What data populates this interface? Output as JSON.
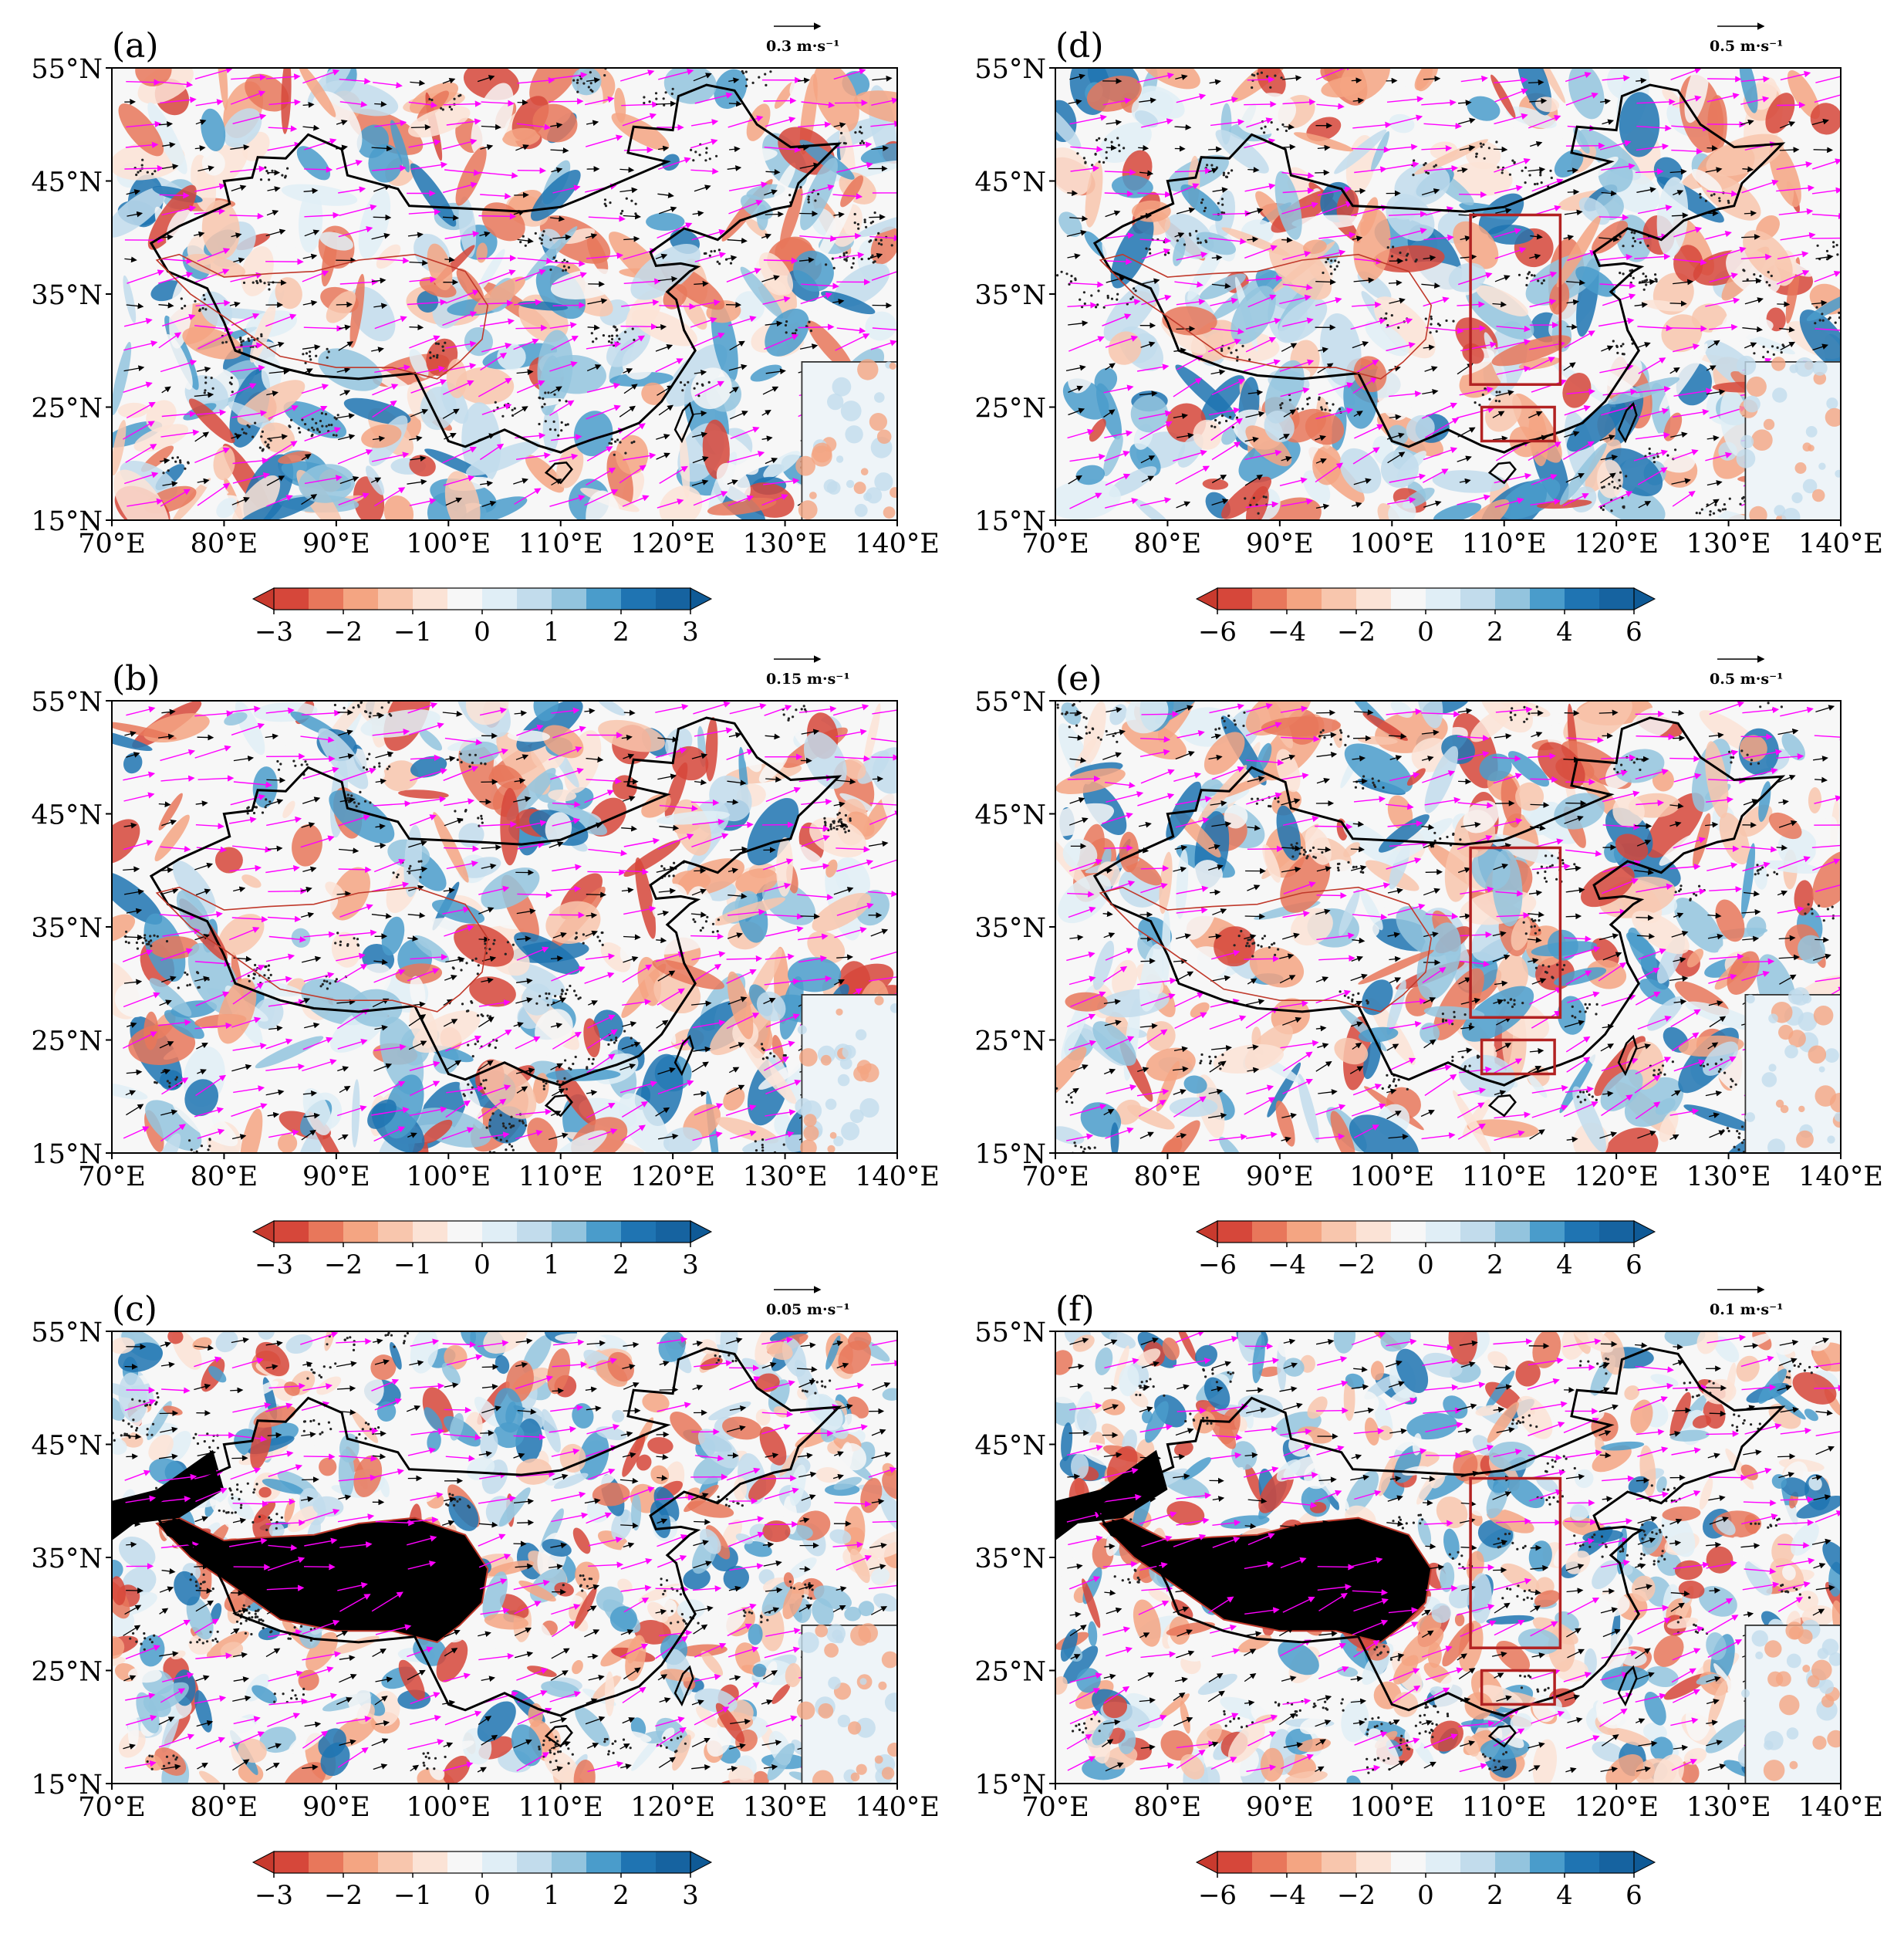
{
  "figure": {
    "x_ticks": [
      "70°E",
      "80°E",
      "90°E",
      "100°E",
      "110°E",
      "120°E",
      "130°E",
      "140°E"
    ],
    "y_ticks": [
      "55°N",
      "45°N",
      "35°N",
      "25°N",
      "15°N"
    ],
    "extent": {
      "lon": [
        70,
        140
      ],
      "lat": [
        15,
        55
      ]
    },
    "vector_colors": {
      "primary": "#000000",
      "secondary": "#ff00ff"
    },
    "anomaly_colors": {
      "negative": "#d62f27",
      "positive": "#1f78b4",
      "neutral": "#f7f7f7"
    },
    "masked_color": "#000000",
    "box_color": "#b22222",
    "boxes": [
      {
        "lon": [
          107,
          115
        ],
        "lat": [
          27,
          42
        ]
      },
      {
        "lon": [
          108,
          114.5
        ],
        "lat": [
          22,
          25
        ]
      }
    ]
  },
  "panels": [
    {
      "label": "(a)",
      "ref_vector": "0.3 m·s⁻¹",
      "colorbar": {
        "ticks": [
          "−3",
          "−2",
          "−1",
          "0",
          "1",
          "2",
          "3"
        ],
        "min": -3,
        "max": 3
      },
      "boxes": false,
      "masked": false
    },
    {
      "label": "(b)",
      "ref_vector": "0.15 m·s⁻¹",
      "colorbar": {
        "ticks": [
          "−3",
          "−2",
          "−1",
          "0",
          "1",
          "2",
          "3"
        ],
        "min": -3,
        "max": 3
      },
      "boxes": false,
      "masked": false
    },
    {
      "label": "(c)",
      "ref_vector": "0.05 m·s⁻¹",
      "colorbar": {
        "ticks": [
          "−3",
          "−2",
          "−1",
          "0",
          "1",
          "2",
          "3"
        ],
        "min": -3,
        "max": 3
      },
      "boxes": false,
      "masked": true
    },
    {
      "label": "(d)",
      "ref_vector": "0.5 m·s⁻¹",
      "colorbar": {
        "ticks": [
          "−6",
          "−4",
          "−2",
          "0",
          "2",
          "4",
          "6"
        ],
        "min": -6,
        "max": 6
      },
      "boxes": true,
      "masked": false
    },
    {
      "label": "(e)",
      "ref_vector": "0.5 m·s⁻¹",
      "colorbar": {
        "ticks": [
          "−6",
          "−4",
          "−2",
          "0",
          "2",
          "4",
          "6"
        ],
        "min": -6,
        "max": 6
      },
      "boxes": true,
      "masked": false
    },
    {
      "label": "(f)",
      "ref_vector": "0.1 m·s⁻¹",
      "colorbar": {
        "ticks": [
          "−6",
          "−4",
          "−2",
          "0",
          "2",
          "4",
          "6"
        ],
        "min": -6,
        "max": 6
      },
      "boxes": true,
      "masked": true
    }
  ]
}
